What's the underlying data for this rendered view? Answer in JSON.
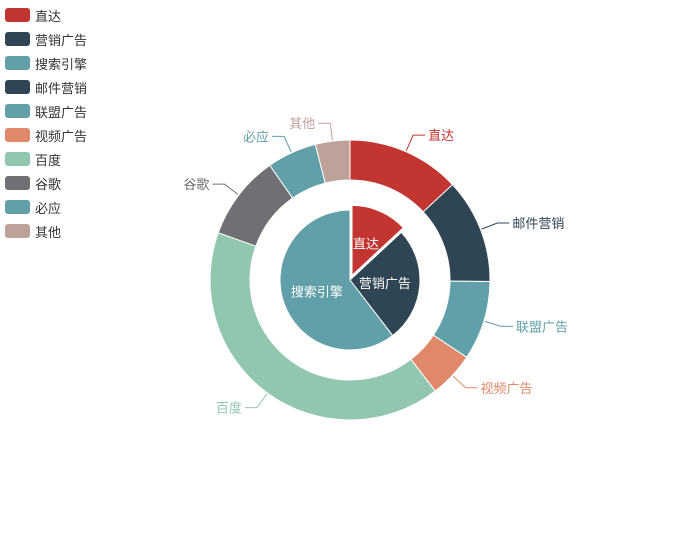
{
  "chart_data": {
    "type": "pie",
    "style": "nested-pie-donut",
    "legend": {
      "position": "top-left",
      "items": [
        {
          "label": "直达",
          "color": "#c23531"
        },
        {
          "label": "营销广告",
          "color": "#2f4554"
        },
        {
          "label": "搜索引擎",
          "color": "#61a0a8"
        },
        {
          "label": "邮件营销",
          "color": "#2f4554"
        },
        {
          "label": "联盟广告",
          "color": "#61a0a8"
        },
        {
          "label": "视频广告",
          "color": "#e0896a"
        },
        {
          "label": "百度",
          "color": "#91c7ae"
        },
        {
          "label": "谷歌",
          "color": "#6e7074"
        },
        {
          "label": "必应",
          "color": "#61a0a8"
        },
        {
          "label": "其他",
          "color": "#bda29a"
        }
      ]
    },
    "inner": {
      "label_position": "inside",
      "selected": "直达",
      "slices": [
        {
          "name": "直达",
          "value": 335,
          "color": "#c23531",
          "label_color": "#ffffff"
        },
        {
          "name": "营销广告",
          "value": 679,
          "color": "#2f4554",
          "label_color": "#ffffff"
        },
        {
          "name": "搜索引擎",
          "value": 1548,
          "color": "#61a0a8",
          "label_color": "#ffffff"
        }
      ]
    },
    "outer": {
      "label_position": "outside",
      "slices": [
        {
          "name": "直达",
          "value": 335,
          "color": "#c23531"
        },
        {
          "name": "邮件营销",
          "value": 310,
          "color": "#2f4554"
        },
        {
          "name": "联盟广告",
          "value": 234,
          "color": "#61a0a8"
        },
        {
          "name": "视频广告",
          "value": 135,
          "color": "#e0896a"
        },
        {
          "name": "百度",
          "value": 1048,
          "color": "#91c7ae"
        },
        {
          "name": "谷歌",
          "value": 251,
          "color": "#6e7074"
        },
        {
          "name": "必应",
          "value": 147,
          "color": "#61a0a8"
        },
        {
          "name": "其他",
          "value": 102,
          "color": "#bda29a"
        }
      ]
    }
  }
}
